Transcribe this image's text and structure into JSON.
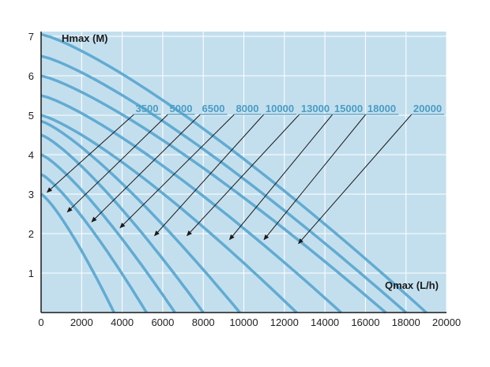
{
  "chart_data": {
    "type": "line",
    "xlabel": "Qmax (L/h)",
    "ylabel": "Hmax (M)",
    "xlim": [
      0,
      20000
    ],
    "ylim": [
      0,
      7
    ],
    "x_ticks": [
      "0",
      "2000",
      "4000",
      "6000",
      "8000",
      "10000",
      "12000",
      "14000",
      "16000",
      "18000",
      "20000"
    ],
    "y_ticks": [
      "1",
      "2",
      "3",
      "4",
      "5",
      "6",
      "7"
    ],
    "grid": true,
    "colors": {
      "background": "#c3dfee",
      "grid": "#ffffff",
      "curve": "#62abd2",
      "label": "#4a9cc3",
      "axis": "#1a1a1a"
    },
    "series": [
      {
        "name": "3500",
        "hmax": 3.0,
        "qmax": 3600
      },
      {
        "name": "5000",
        "hmax": 3.5,
        "qmax": 5200
      },
      {
        "name": "6500",
        "hmax": 4.0,
        "qmax": 6600
      },
      {
        "name": "8000",
        "hmax": 4.5,
        "qmax": 8000
      },
      {
        "name": "10000",
        "hmax": 4.85,
        "qmax": 9800
      },
      {
        "name": "13000",
        "hmax": 5.0,
        "qmax": 12600
      },
      {
        "name": "15000",
        "hmax": 5.5,
        "qmax": 14800
      },
      {
        "name": "18000",
        "hmax": 6.0,
        "qmax": 17000
      },
      {
        "name": "20000",
        "hmax": 6.5,
        "qmax": 18000
      },
      {
        "name": "",
        "hmax": 7.05,
        "qmax": 19000
      }
    ],
    "labels": [
      "3500",
      "5000",
      "6500",
      "8000",
      "10000",
      "13000",
      "15000",
      "18000",
      "20000"
    ],
    "pointers": [
      {
        "label": "3500",
        "target": [
          300,
          3.05
        ]
      },
      {
        "label": "5000",
        "target": [
          1300,
          2.55
        ]
      },
      {
        "label": "6500",
        "target": [
          2500,
          2.3
        ]
      },
      {
        "label": "8000",
        "target": [
          3900,
          2.15
        ]
      },
      {
        "label": "10000",
        "target": [
          5600,
          1.95
        ]
      },
      {
        "label": "13000",
        "target": [
          7200,
          1.95
        ]
      },
      {
        "label": "15000",
        "target": [
          9300,
          1.85
        ]
      },
      {
        "label": "18000",
        "target": [
          11000,
          1.85
        ]
      },
      {
        "label": "20000",
        "target": [
          12700,
          1.75
        ]
      }
    ]
  }
}
